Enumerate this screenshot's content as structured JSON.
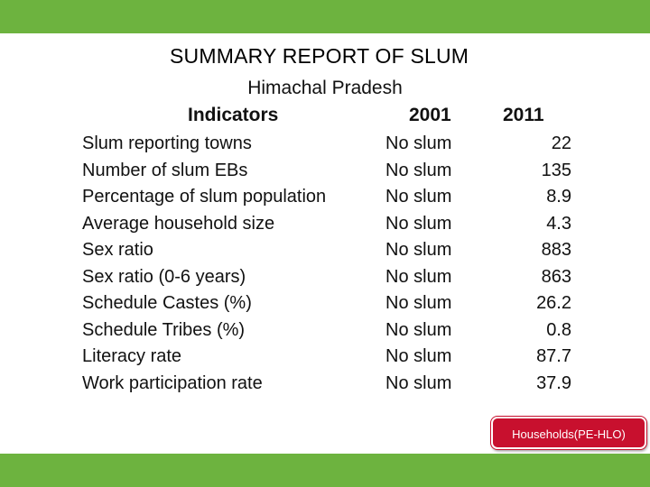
{
  "header_bar_color": "#6db33f",
  "title": "SUMMARY REPORT OF SLUM",
  "subtitle": "Himachal Pradesh",
  "table": {
    "headers": {
      "indicator": "Indicators",
      "y2001": "2001",
      "y2011": "2011"
    },
    "rows": [
      {
        "indicator": "Slum reporting towns",
        "y2001": "No slum",
        "y2011": "22"
      },
      {
        "indicator": "Number of slum EBs",
        "y2001": "No slum",
        "y2011": "135"
      },
      {
        "indicator": "Percentage of slum population",
        "y2001": "No slum",
        "y2011": "8.9"
      },
      {
        "indicator": "Average household size",
        "y2001": "No slum",
        "y2011": "4.3"
      },
      {
        "indicator": "Sex ratio",
        "y2001": "No slum",
        "y2011": "883"
      },
      {
        "indicator": "Sex ratio (0-6 years)",
        "y2001": "No slum",
        "y2011": "863"
      },
      {
        "indicator": "Schedule Castes (%)",
        "y2001": "No slum",
        "y2011": "26.2"
      },
      {
        "indicator": "Schedule Tribes (%)",
        "y2001": "No slum",
        "y2011": "0.8"
      },
      {
        "indicator": "Literacy rate",
        "y2001": "No slum",
        "y2011": "87.7"
      },
      {
        "indicator": "Work participation rate",
        "y2001": "No slum",
        "y2011": "37.9"
      }
    ]
  },
  "nav_button": {
    "label": "Households(PE-HLO)",
    "color": "#c8102e"
  }
}
